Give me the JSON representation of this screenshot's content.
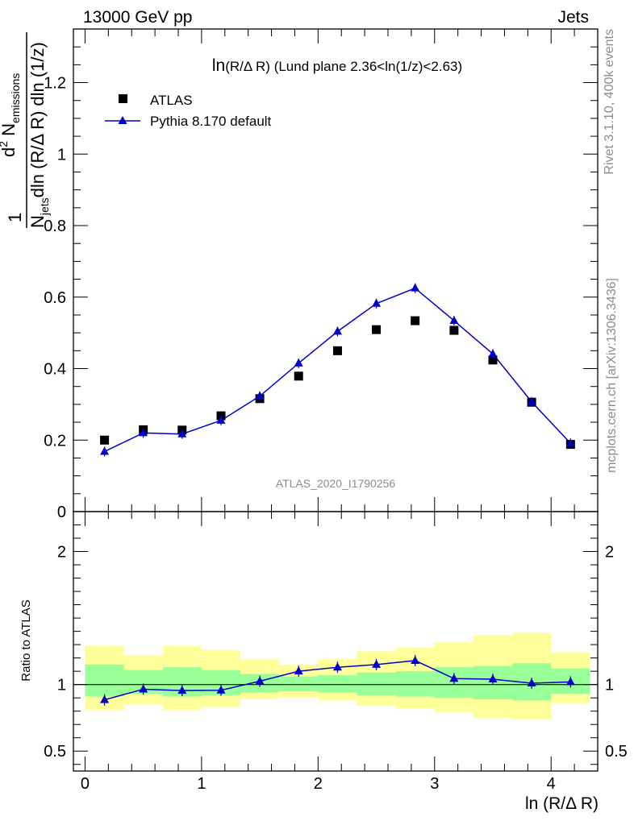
{
  "header": {
    "left": "13000 GeV pp",
    "right": "Jets"
  },
  "side_labels": {
    "rivet": "Rivet 3.1.10,  400k events",
    "mcplots": "mcplots.cern.ch [arXiv:1306.3436]"
  },
  "chart_data": [
    {
      "type": "scatter",
      "title": "ln(R/Δ R) (Lund plane 2.36<ln(1/z)<2.63)",
      "title_parts": {
        "main": "ln",
        "paren": "(R/Δ R)",
        "rest": " (Lund plane 2.36<ln(1/z)<2.63)"
      },
      "watermark": "ATLAS_2020_I1790256",
      "ylabel": {
        "one": "1",
        "n": "N",
        "jets": "jets",
        "dln": "dln (R/Δ R) dln (1/z)",
        "d2": "d",
        "two": "2",
        "nem": " N",
        "emissions": "emissions"
      },
      "xlim": [
        -0.1,
        4.4
      ],
      "ylim": [
        0,
        1.35
      ],
      "yticks": [
        0,
        0.2,
        0.4,
        0.6,
        0.8,
        1,
        1.2
      ],
      "ytick_labels": [
        "0",
        "0.2",
        "0.4",
        "0.6",
        "0.8",
        "1",
        "1.2"
      ],
      "legend": {
        "placement": "top-left",
        "atlas": "ATLAS",
        "pythia": "Pythia 8.170 default"
      },
      "x": [
        0.167,
        0.5,
        0.833,
        1.167,
        1.5,
        1.833,
        2.167,
        2.5,
        2.833,
        3.167,
        3.5,
        3.833,
        4.167
      ],
      "series": [
        {
          "name": "ATLAS",
          "color": "#000000",
          "values": [
            0.2,
            0.229,
            0.228,
            0.268,
            0.316,
            0.379,
            0.45,
            0.509,
            0.534,
            0.507,
            0.424,
            0.306,
            0.188
          ]
        },
        {
          "name": "Pythia 8.170 default",
          "color": "#0000cc",
          "values": [
            0.168,
            0.22,
            0.217,
            0.255,
            0.323,
            0.415,
            0.504,
            0.582,
            0.625,
            0.534,
            0.441,
            0.307,
            0.191
          ]
        }
      ]
    },
    {
      "type": "line",
      "ylabel": "Ratio to ATLAS",
      "xlabel": "ln (R/Δ R)",
      "xlim": [
        -0.1,
        4.4
      ],
      "ylim": [
        0.35,
        2.3
      ],
      "xticks": [
        0,
        1,
        2,
        3,
        4
      ],
      "xtick_labels": [
        "0",
        "1",
        "2",
        "3",
        "4"
      ],
      "yticks": [
        0.5,
        1,
        2
      ],
      "ytick_labels": [
        "0.5",
        "1",
        "2"
      ],
      "bin_edges": [
        0,
        0.333,
        0.667,
        1.0,
        1.333,
        1.667,
        2.0,
        2.333,
        2.667,
        3.0,
        3.333,
        3.667,
        4.0,
        4.333
      ],
      "band_inner": {
        "color": "#99ff99",
        "lo": [
          0.91,
          0.93,
          0.91,
          0.92,
          0.94,
          0.95,
          0.94,
          0.92,
          0.91,
          0.9,
          0.89,
          0.88,
          0.93
        ],
        "hi": [
          1.15,
          1.11,
          1.13,
          1.11,
          1.08,
          1.06,
          1.07,
          1.09,
          1.1,
          1.13,
          1.14,
          1.16,
          1.12
        ]
      },
      "band_outer": {
        "color": "#ffff99",
        "lo": [
          0.81,
          0.85,
          0.81,
          0.83,
          0.89,
          0.9,
          0.88,
          0.84,
          0.82,
          0.79,
          0.75,
          0.74,
          0.86
        ],
        "hi": [
          1.29,
          1.22,
          1.29,
          1.26,
          1.19,
          1.15,
          1.19,
          1.25,
          1.28,
          1.32,
          1.37,
          1.39,
          1.24
        ]
      },
      "x": [
        0.167,
        0.5,
        0.833,
        1.167,
        1.5,
        1.833,
        2.167,
        2.5,
        2.833,
        3.167,
        3.5,
        3.833,
        4.167
      ],
      "series": [
        {
          "name": "Pythia 8.170 default",
          "color": "#0000cc",
          "values": [
            0.885,
            0.965,
            0.955,
            0.957,
            1.025,
            1.1,
            1.13,
            1.15,
            1.18,
            1.045,
            1.04,
            1.01,
            1.02
          ]
        }
      ]
    }
  ]
}
